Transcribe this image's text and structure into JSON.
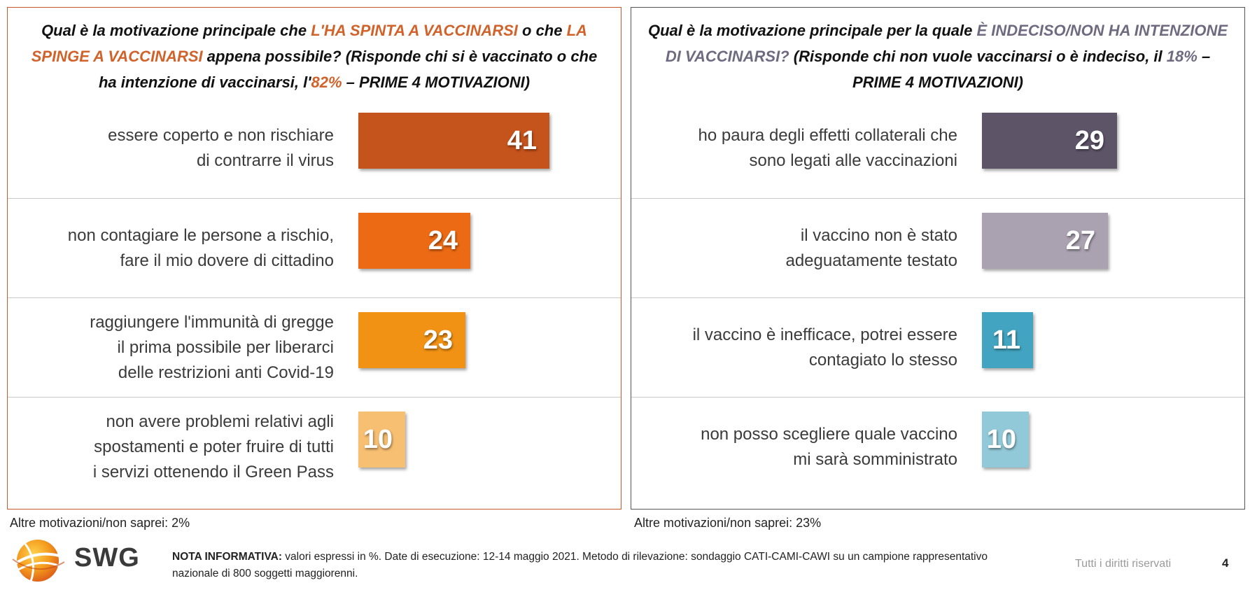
{
  "colors": {
    "left_accent": "#d0622a",
    "right_accent": "#6f6a80"
  },
  "left": {
    "question": {
      "p1": "Qual è la motivazione principale che ",
      "h1": "L'HA SPINTA A VACCINARSI",
      "p2": " o che ",
      "h2": "LA SPINGE A VACCINARSI",
      "p3": " appena possibile? (Risponde chi si è vaccinato o che ha intenzione di vaccinarsi, l'",
      "h3": "82%",
      "p4": " – PRIME 4 MOTIVAZIONI)"
    },
    "footnote": "Altre motivazioni/non saprei: 2%"
  },
  "right": {
    "question": {
      "p1": "Qual è la motivazione principale per la quale ",
      "h1": "È INDECISO/NON HA INTENZIONE DI VACCINARSI?",
      "p2": " (Risponde chi non vuole vaccinarsi o è indeciso, il ",
      "h2": "18%",
      "p3": " – PRIME 4 MOTIVAZIONI)"
    },
    "footnote": "Altre motivazioni/non saprei: 23%"
  },
  "chart_data": [
    {
      "type": "bar",
      "orientation": "horizontal",
      "categories": [
        "essere coperto e non rischiare\ndi contrarre il virus",
        "non contagiare le persone a rischio,\nfare il mio dovere di cittadino",
        "raggiungere l'immunità di gregge\nil prima possibile per liberarci\ndelle restrizioni anti Covid-19",
        "non avere problemi relativi agli\nspostamenti e poter fruire di tutti\ni servizi ottenendo il Green Pass"
      ],
      "values": [
        41,
        24,
        23,
        10
      ],
      "colors": [
        "#c5531c",
        "#ec6a14",
        "#f29214",
        "#f7bf72"
      ],
      "xlim": [
        0,
        45
      ]
    },
    {
      "type": "bar",
      "orientation": "horizontal",
      "categories": [
        "ho paura degli effetti collaterali che\nsono legati alle vaccinazioni",
        "il vaccino non è stato\nadeguatamente testato",
        "il vaccino è inefficace, potrei essere\ncontagiato lo stesso",
        "non posso scegliere quale vaccino\nmi sarà somministrato"
      ],
      "values": [
        29,
        27,
        11,
        10
      ],
      "colors": [
        "#5e5468",
        "#aaa2b0",
        "#42a4c0",
        "#92c9d8"
      ],
      "xlim": [
        0,
        45
      ]
    }
  ],
  "footer": {
    "logo_text": "SWG",
    "nota_label": "NOTA INFORMATIVA:",
    "nota_text": " valori espressi in %. Date di esecuzione: 12-14 maggio 2021. Metodo di rilevazione: sondaggio CATI-CAMI-CAWI su un campione rappresentativo nazionale di 800 soggetti maggiorenni.",
    "rights": "Tutti i diritti riservati",
    "page_number": "4"
  }
}
